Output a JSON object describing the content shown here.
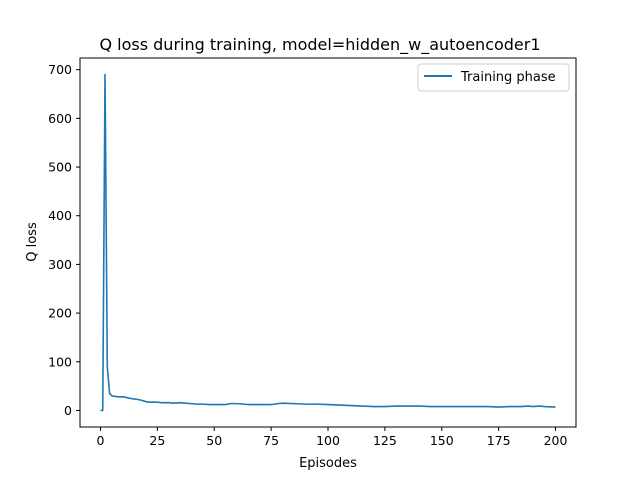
{
  "chart_data": {
    "type": "line",
    "title": "Q loss during training, model=hidden_w_autoencoder1",
    "xlabel": "Episodes",
    "ylabel": "Q loss",
    "xlim": [
      -9,
      209
    ],
    "ylim": [
      -34,
      724
    ],
    "xticks": [
      0,
      25,
      50,
      75,
      100,
      125,
      150,
      175,
      200
    ],
    "yticks": [
      0,
      100,
      200,
      300,
      400,
      500,
      600,
      700
    ],
    "grid": false,
    "legend_position": "top-right",
    "series": [
      {
        "name": "Training phase",
        "color": "#1f77b4",
        "points": [
          [
            0,
            0
          ],
          [
            1,
            0
          ],
          [
            2,
            690
          ],
          [
            3,
            90
          ],
          [
            4,
            35
          ],
          [
            5,
            30
          ],
          [
            6,
            29
          ],
          [
            8,
            28
          ],
          [
            10,
            28
          ],
          [
            12,
            26
          ],
          [
            14,
            24
          ],
          [
            16,
            23
          ],
          [
            18,
            21
          ],
          [
            20,
            18
          ],
          [
            22,
            17
          ],
          [
            25,
            17
          ],
          [
            27,
            16
          ],
          [
            30,
            16
          ],
          [
            32,
            15
          ],
          [
            35,
            16
          ],
          [
            37,
            15
          ],
          [
            40,
            14
          ],
          [
            42,
            13
          ],
          [
            45,
            13
          ],
          [
            48,
            12
          ],
          [
            50,
            12
          ],
          [
            52,
            12
          ],
          [
            55,
            12
          ],
          [
            57,
            14
          ],
          [
            60,
            14
          ],
          [
            63,
            13
          ],
          [
            65,
            12
          ],
          [
            70,
            12
          ],
          [
            75,
            12
          ],
          [
            78,
            14
          ],
          [
            80,
            15
          ],
          [
            85,
            14
          ],
          [
            90,
            13
          ],
          [
            95,
            13
          ],
          [
            100,
            12
          ],
          [
            105,
            11
          ],
          [
            110,
            10
          ],
          [
            115,
            9
          ],
          [
            120,
            8
          ],
          [
            125,
            8
          ],
          [
            130,
            9
          ],
          [
            135,
            9
          ],
          [
            140,
            9
          ],
          [
            145,
            8
          ],
          [
            150,
            8
          ],
          [
            155,
            8
          ],
          [
            160,
            8
          ],
          [
            165,
            8
          ],
          [
            170,
            8
          ],
          [
            175,
            7
          ],
          [
            180,
            8
          ],
          [
            185,
            8
          ],
          [
            188,
            9
          ],
          [
            190,
            8
          ],
          [
            193,
            9
          ],
          [
            195,
            8
          ],
          [
            200,
            7
          ]
        ]
      }
    ]
  }
}
